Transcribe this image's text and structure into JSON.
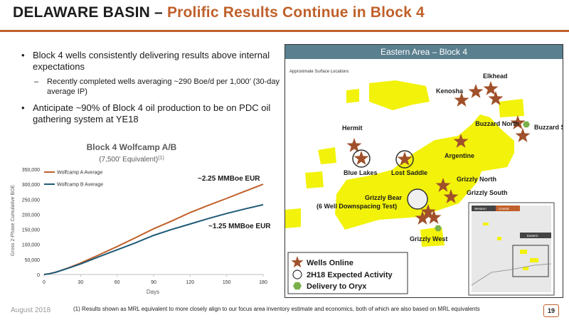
{
  "slide": {
    "title_main": "DELAWARE BASIN – ",
    "title_accent": "Prolific Results Continue in Block 4",
    "bullets": [
      {
        "text": "Block 4 wells consistently delivering results above internal expectations",
        "sub": "Recently completed wells averaging ~290 Boe/d per 1,000’ (30-day average IP)"
      },
      {
        "text": "Anticipate ~90% of Block 4 oil production to be on PDC oil gathering system at YE18"
      }
    ],
    "footer_date": "August 2018",
    "footnote": "(1)  Results shown as MRL equivalent to more closely align to our focus area inventory estimate and economics, both of which are also based on MRL equivalents",
    "page_number": "19"
  },
  "chart_data": {
    "type": "line",
    "title": "Block 4 Wolfcamp A/B",
    "subtitle": "(7,500’ Equivalent)",
    "subtitle_sup": "(1)",
    "xlabel": "Days",
    "ylabel": "Gross 2-Phase Cumulative BOE",
    "xlim": [
      0,
      180
    ],
    "ylim": [
      0,
      350000
    ],
    "xticks": [
      0,
      30,
      60,
      90,
      120,
      150,
      180
    ],
    "xtick_labels": [
      "0",
      "30",
      "60",
      "90",
      "120",
      "150",
      "180"
    ],
    "yticks": [
      0,
      50000,
      100000,
      150000,
      200000,
      250000,
      300000,
      350000
    ],
    "ytick_labels": [
      "0",
      "50,000",
      "100,000",
      "150,000",
      "200,000",
      "250,000",
      "300,000",
      "350,000"
    ],
    "legend_position": "top-left",
    "series": [
      {
        "name": "Wolfcamp A Average",
        "color": "#c0602a",
        "x": [
          0,
          5,
          10,
          20,
          30,
          45,
          60,
          75,
          90,
          105,
          120,
          135,
          150,
          165,
          180
        ],
        "y": [
          0,
          3000,
          8000,
          22000,
          38000,
          65000,
          93000,
          122000,
          152000,
          178000,
          206000,
          230000,
          253000,
          277000,
          300000
        ]
      },
      {
        "name": "Wolfcamp B Average",
        "color": "#1f5a78",
        "x": [
          0,
          5,
          10,
          20,
          30,
          45,
          60,
          75,
          90,
          105,
          120,
          135,
          150,
          165,
          180
        ],
        "y": [
          0,
          3000,
          8000,
          21000,
          35000,
          59000,
          82000,
          105000,
          130000,
          150000,
          168000,
          186000,
          203000,
          218000,
          232000
        ]
      }
    ],
    "annotations": [
      {
        "text": "~2.25 MMBoe EUR"
      },
      {
        "text": "~1.25 MMBoe EUR"
      }
    ]
  },
  "map": {
    "header": "Eastern Area – Block 4",
    "subtitle": "Approximate Surface Locations",
    "colors": {
      "acreage": "#f2f20a",
      "star": "#a0502a",
      "hex": "#7ab04a"
    },
    "labels": {
      "elkhead": "Elkhead",
      "kenosha": "Kenosha",
      "buzzard_north": "Buzzard North",
      "buzzard_south": "Buzzard South",
      "hermit": "Hermit",
      "argentine": "Argentine",
      "blue_lakes": "Blue Lakes",
      "lost_saddle": "Lost Saddle",
      "grizzly_north": "Grizzly North",
      "grizzly_south": "Grizzly South",
      "grizzly_bear": "Grizzly Bear",
      "downspacing": "(6 Well Downspacing Test)",
      "grizzly_west": "Grizzly West"
    },
    "legend": {
      "wells_online": "Wells Online",
      "expected": "2H18 Expected Activity",
      "delivery": "Delivery to Oryx"
    },
    "inset": {
      "western": "Western",
      "central": "Central",
      "eastern": "Eastern"
    }
  }
}
